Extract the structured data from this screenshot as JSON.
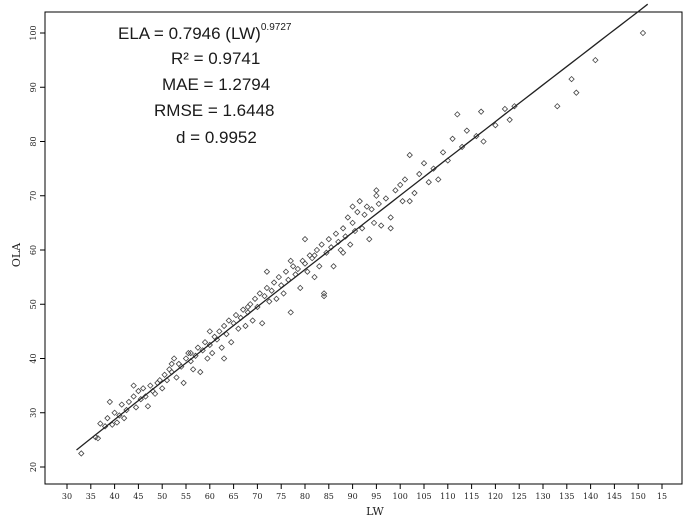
{
  "chart_data": {
    "type": "scatter",
    "title": "",
    "xlabel": "LW",
    "ylabel": "OLA",
    "xlim": [
      30,
      155
    ],
    "ylim": [
      20,
      100
    ],
    "x_ticks": [
      "30",
      "35",
      "40",
      "45",
      "50",
      "55",
      "60",
      "65",
      "70",
      "75",
      "80",
      "85",
      "90",
      "95",
      "100",
      "105",
      "110",
      "115",
      "120",
      "125",
      "130",
      "135",
      "140",
      "145",
      "150",
      "15"
    ],
    "y_ticks": [
      "20",
      "30",
      "40",
      "50",
      "60",
      "70",
      "80",
      "90",
      "100"
    ],
    "grid": false,
    "equation": {
      "line1_text": "ELA = 0.7946 (LW)",
      "line1_exponent": "0.9727",
      "r2": "R² = 0.9741",
      "mae": "MAE = 1.2794",
      "rmse": "RMSE = 1.6448",
      "d": "d = 0.9952"
    },
    "fit_line": {
      "a": 0.7946,
      "b": 0.9727
    },
    "fit_range": [
      32,
      152
    ],
    "points": [
      [
        33,
        22.5
      ],
      [
        36,
        25.5
      ],
      [
        36.5,
        25.3
      ],
      [
        37,
        28
      ],
      [
        38,
        27.5
      ],
      [
        38.5,
        29
      ],
      [
        39,
        32
      ],
      [
        39.5,
        27.8
      ],
      [
        40,
        30
      ],
      [
        40.5,
        28.2
      ],
      [
        41,
        29.5
      ],
      [
        41.5,
        31.5
      ],
      [
        42,
        29
      ],
      [
        42.5,
        30.5
      ],
      [
        43,
        32
      ],
      [
        44,
        33
      ],
      [
        44.5,
        31
      ],
      [
        45,
        34
      ],
      [
        45.5,
        32.5
      ],
      [
        46,
        34.5
      ],
      [
        46.5,
        33
      ],
      [
        47,
        31.2
      ],
      [
        47.5,
        35
      ],
      [
        48,
        34
      ],
      [
        48.5,
        33.5
      ],
      [
        49,
        35.5
      ],
      [
        49.5,
        36
      ],
      [
        50,
        34.5
      ],
      [
        50.5,
        37
      ],
      [
        51,
        36
      ],
      [
        51.5,
        38
      ],
      [
        52,
        37.5
      ],
      [
        52.5,
        40
      ],
      [
        53,
        36.5
      ],
      [
        53.5,
        39
      ],
      [
        54,
        38.5
      ],
      [
        54.5,
        35.5
      ],
      [
        55,
        40
      ],
      [
        55.5,
        41
      ],
      [
        56,
        39.5
      ],
      [
        56.5,
        38
      ],
      [
        57,
        40.5
      ],
      [
        57.5,
        42
      ],
      [
        58,
        37.5
      ],
      [
        58.5,
        41.5
      ],
      [
        59,
        43
      ],
      [
        59.5,
        40
      ],
      [
        60,
        42.5
      ],
      [
        60.5,
        41
      ],
      [
        61,
        44
      ],
      [
        61.5,
        43.5
      ],
      [
        62,
        45
      ],
      [
        62.5,
        42
      ],
      [
        63,
        46
      ],
      [
        63.5,
        44.5
      ],
      [
        64,
        47
      ],
      [
        64.5,
        43
      ],
      [
        65,
        46.5
      ],
      [
        65.5,
        48
      ],
      [
        66,
        45.5
      ],
      [
        66.5,
        47.5
      ],
      [
        67,
        49
      ],
      [
        67.5,
        46
      ],
      [
        68,
        48.5
      ],
      [
        68.5,
        50
      ],
      [
        69,
        47
      ],
      [
        69.5,
        51
      ],
      [
        70,
        49.5
      ],
      [
        70.5,
        52
      ],
      [
        71,
        46.5
      ],
      [
        71.5,
        51.5
      ],
      [
        72,
        53
      ],
      [
        72.5,
        50.5
      ],
      [
        73,
        52.5
      ],
      [
        73.5,
        54
      ],
      [
        74,
        51
      ],
      [
        74.5,
        55
      ],
      [
        75,
        53.5
      ],
      [
        75.5,
        52
      ],
      [
        76,
        56
      ],
      [
        76.5,
        54.5
      ],
      [
        77,
        48.5
      ],
      [
        77.5,
        57
      ],
      [
        78,
        55.5
      ],
      [
        78.5,
        56.5
      ],
      [
        79,
        53
      ],
      [
        79.5,
        58
      ],
      [
        80,
        57.5
      ],
      [
        80.5,
        56
      ],
      [
        81,
        59
      ],
      [
        81.5,
        58.5
      ],
      [
        82,
        55
      ],
      [
        82.5,
        60
      ],
      [
        83,
        57
      ],
      [
        83.5,
        61
      ],
      [
        84,
        51.5
      ],
      [
        84.5,
        59.5
      ],
      [
        85,
        62
      ],
      [
        85.5,
        60.5
      ],
      [
        86,
        57
      ],
      [
        86.5,
        63
      ],
      [
        87,
        61.5
      ],
      [
        87.5,
        60
      ],
      [
        88,
        64
      ],
      [
        88.5,
        62.5
      ],
      [
        89,
        66
      ],
      [
        89.5,
        61
      ],
      [
        90,
        65
      ],
      [
        90.5,
        63.5
      ],
      [
        91,
        67
      ],
      [
        91.5,
        69
      ],
      [
        92,
        64
      ],
      [
        92.5,
        66.5
      ],
      [
        93,
        68
      ],
      [
        93.5,
        62
      ],
      [
        94,
        67.5
      ],
      [
        94.5,
        65
      ],
      [
        95,
        70
      ],
      [
        95.5,
        68.5
      ],
      [
        96,
        64.5
      ],
      [
        97,
        69.5
      ],
      [
        98,
        66
      ],
      [
        99,
        71
      ],
      [
        100,
        72
      ],
      [
        100.5,
        69
      ],
      [
        101,
        73
      ],
      [
        102,
        77.5
      ],
      [
        103,
        70.5
      ],
      [
        104,
        74
      ],
      [
        105,
        76
      ],
      [
        106,
        72.5
      ],
      [
        107,
        75
      ],
      [
        108,
        73
      ],
      [
        109,
        78
      ],
      [
        110,
        76.5
      ],
      [
        111,
        80.5
      ],
      [
        112,
        85
      ],
      [
        113,
        79
      ],
      [
        114,
        82
      ],
      [
        116,
        81
      ],
      [
        117,
        85.5
      ],
      [
        117.5,
        80
      ],
      [
        120,
        83
      ],
      [
        122,
        86
      ],
      [
        123,
        84
      ],
      [
        124,
        86.5
      ],
      [
        133,
        86.5
      ],
      [
        136,
        91.5
      ],
      [
        137,
        89
      ],
      [
        141,
        95
      ],
      [
        151,
        100
      ],
      [
        60,
        45
      ],
      [
        63,
        40
      ],
      [
        72,
        56
      ],
      [
        77,
        58
      ],
      [
        80,
        62
      ],
      [
        84,
        52
      ],
      [
        90,
        68
      ],
      [
        95,
        71
      ],
      [
        98,
        64
      ],
      [
        102,
        69
      ],
      [
        44,
        35
      ],
      [
        52,
        39
      ],
      [
        56,
        41
      ],
      [
        68,
        49.5
      ],
      [
        82,
        59
      ],
      [
        88,
        59.5
      ]
    ]
  }
}
